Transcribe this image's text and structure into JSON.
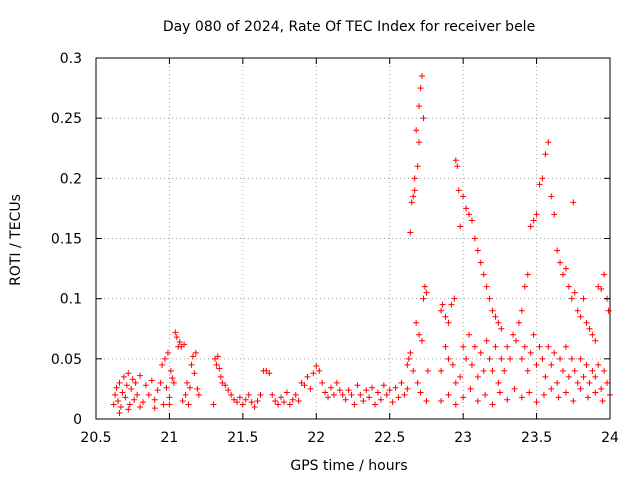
{
  "chart_data": {
    "type": "scatter",
    "title": "Day 080 of 2024, Rate Of TEC Index for receiver bele",
    "xlabel": "GPS time / hours",
    "ylabel": "ROTI / TECUs",
    "xlim": [
      20.5,
      24
    ],
    "ylim": [
      0,
      0.3
    ],
    "x_ticks": [
      20.5,
      21,
      21.5,
      22,
      22.5,
      23,
      23.5,
      24
    ],
    "x_tick_labels": [
      "20.5",
      "21",
      "21.5",
      "22",
      "22.5",
      "23",
      "23.5",
      "24"
    ],
    "y_ticks": [
      0,
      0.05,
      0.1,
      0.15,
      0.2,
      0.25,
      0.3
    ],
    "y_tick_labels": [
      "0",
      "0.05",
      "0.1",
      "0.15",
      "0.2",
      "0.25",
      "0.3"
    ],
    "grid": true,
    "marker": "+",
    "series_color": "#ff0000",
    "series": [
      {
        "name": "ROTI",
        "points": [
          [
            20.62,
            0.012
          ],
          [
            20.63,
            0.02
          ],
          [
            20.64,
            0.026
          ],
          [
            20.65,
            0.015
          ],
          [
            20.66,
            0.03
          ],
          [
            20.67,
            0.01
          ],
          [
            20.68,
            0.022
          ],
          [
            20.69,
            0.035
          ],
          [
            20.7,
            0.018
          ],
          [
            20.71,
            0.028
          ],
          [
            20.72,
            0.038
          ],
          [
            20.73,
            0.012
          ],
          [
            20.74,
            0.025
          ],
          [
            20.75,
            0.033
          ],
          [
            20.76,
            0.016
          ],
          [
            20.77,
            0.03
          ],
          [
            20.78,
            0.02
          ],
          [
            20.8,
            0.036
          ],
          [
            20.82,
            0.014
          ],
          [
            20.84,
            0.028
          ],
          [
            20.86,
            0.02
          ],
          [
            20.88,
            0.032
          ],
          [
            20.9,
            0.016
          ],
          [
            20.92,
            0.024
          ],
          [
            20.94,
            0.03
          ],
          [
            20.96,
            0.012
          ],
          [
            20.98,
            0.026
          ],
          [
            21.0,
            0.018
          ],
          [
            21.02,
            0.034
          ],
          [
            21.04,
            0.072
          ],
          [
            21.05,
            0.068
          ],
          [
            21.06,
            0.06
          ],
          [
            21.07,
            0.064
          ],
          [
            21.08,
            0.06
          ],
          [
            21.1,
            0.062
          ],
          [
            21.12,
            0.03
          ],
          [
            21.14,
            0.026
          ],
          [
            21.16,
            0.052
          ],
          [
            21.18,
            0.055
          ],
          [
            21.2,
            0.02
          ],
          [
            20.95,
            0.045
          ],
          [
            20.97,
            0.05
          ],
          [
            20.99,
            0.055
          ],
          [
            21.01,
            0.04
          ],
          [
            21.03,
            0.03
          ],
          [
            21.09,
            0.015
          ],
          [
            21.11,
            0.02
          ],
          [
            21.13,
            0.012
          ],
          [
            21.15,
            0.045
          ],
          [
            21.17,
            0.038
          ],
          [
            21.19,
            0.025
          ],
          [
            20.66,
            0.005
          ],
          [
            20.72,
            0.008
          ],
          [
            20.8,
            0.01
          ],
          [
            20.9,
            0.009
          ],
          [
            21.0,
            0.012
          ],
          [
            21.3,
            0.012
          ],
          [
            21.31,
            0.05
          ],
          [
            21.32,
            0.045
          ],
          [
            21.33,
            0.052
          ],
          [
            21.34,
            0.042
          ],
          [
            21.35,
            0.035
          ],
          [
            21.36,
            0.03
          ],
          [
            21.38,
            0.028
          ],
          [
            21.4,
            0.024
          ],
          [
            21.42,
            0.02
          ],
          [
            21.44,
            0.016
          ],
          [
            21.46,
            0.014
          ],
          [
            21.48,
            0.018
          ],
          [
            21.5,
            0.012
          ],
          [
            21.52,
            0.016
          ],
          [
            21.54,
            0.02
          ],
          [
            21.56,
            0.014
          ],
          [
            21.58,
            0.01
          ],
          [
            21.6,
            0.015
          ],
          [
            21.62,
            0.02
          ],
          [
            21.64,
            0.04
          ],
          [
            21.66,
            0.04
          ],
          [
            21.68,
            0.038
          ],
          [
            21.7,
            0.02
          ],
          [
            21.72,
            0.015
          ],
          [
            21.74,
            0.012
          ],
          [
            21.76,
            0.018
          ],
          [
            21.78,
            0.014
          ],
          [
            21.8,
            0.022
          ],
          [
            21.82,
            0.012
          ],
          [
            21.84,
            0.016
          ],
          [
            21.86,
            0.02
          ],
          [
            21.88,
            0.015
          ],
          [
            21.9,
            0.03
          ],
          [
            21.92,
            0.028
          ],
          [
            21.94,
            0.035
          ],
          [
            21.96,
            0.025
          ],
          [
            21.98,
            0.038
          ],
          [
            22.0,
            0.044
          ],
          [
            22.02,
            0.04
          ],
          [
            22.04,
            0.03
          ],
          [
            22.06,
            0.022
          ],
          [
            22.08,
            0.018
          ],
          [
            22.1,
            0.026
          ],
          [
            22.12,
            0.02
          ],
          [
            22.14,
            0.03
          ],
          [
            22.16,
            0.024
          ],
          [
            22.18,
            0.02
          ],
          [
            22.2,
            0.016
          ],
          [
            22.22,
            0.024
          ],
          [
            22.24,
            0.02
          ],
          [
            22.26,
            0.012
          ],
          [
            22.28,
            0.028
          ],
          [
            22.3,
            0.02
          ],
          [
            22.32,
            0.015
          ],
          [
            22.34,
            0.024
          ],
          [
            22.36,
            0.018
          ],
          [
            22.38,
            0.026
          ],
          [
            22.4,
            0.012
          ],
          [
            22.42,
            0.022
          ],
          [
            22.44,
            0.016
          ],
          [
            22.46,
            0.028
          ],
          [
            22.48,
            0.02
          ],
          [
            22.5,
            0.024
          ],
          [
            22.52,
            0.014
          ],
          [
            22.54,
            0.026
          ],
          [
            22.56,
            0.018
          ],
          [
            22.58,
            0.03
          ],
          [
            22.6,
            0.02
          ],
          [
            22.62,
            0.045
          ],
          [
            22.63,
            0.05
          ],
          [
            22.64,
            0.055
          ],
          [
            22.65,
            0.18
          ],
          [
            22.66,
            0.185
          ],
          [
            22.67,
            0.19
          ],
          [
            22.68,
            0.24
          ],
          [
            22.69,
            0.21
          ],
          [
            22.7,
            0.26
          ],
          [
            22.71,
            0.275
          ],
          [
            22.72,
            0.285
          ],
          [
            22.73,
            0.25
          ],
          [
            22.74,
            0.11
          ],
          [
            22.75,
            0.105
          ],
          [
            22.76,
            0.04
          ],
          [
            22.64,
            0.155
          ],
          [
            22.67,
            0.2
          ],
          [
            22.7,
            0.23
          ],
          [
            22.73,
            0.1
          ],
          [
            22.68,
            0.08
          ],
          [
            22.7,
            0.07
          ],
          [
            22.72,
            0.065
          ],
          [
            22.66,
            0.04
          ],
          [
            22.62,
            0.025
          ],
          [
            22.69,
            0.03
          ],
          [
            22.71,
            0.022
          ],
          [
            22.75,
            0.015
          ],
          [
            22.85,
            0.09
          ],
          [
            22.86,
            0.095
          ],
          [
            22.88,
            0.085
          ],
          [
            22.9,
            0.08
          ],
          [
            22.92,
            0.095
          ],
          [
            22.94,
            0.1
          ],
          [
            22.95,
            0.215
          ],
          [
            22.96,
            0.21
          ],
          [
            22.97,
            0.19
          ],
          [
            22.98,
            0.16
          ],
          [
            23.0,
            0.185
          ],
          [
            23.02,
            0.175
          ],
          [
            23.04,
            0.17
          ],
          [
            23.06,
            0.165
          ],
          [
            23.08,
            0.15
          ],
          [
            23.1,
            0.14
          ],
          [
            23.12,
            0.13
          ],
          [
            23.14,
            0.12
          ],
          [
            23.16,
            0.11
          ],
          [
            23.18,
            0.1
          ],
          [
            23.2,
            0.09
          ],
          [
            23.22,
            0.085
          ],
          [
            23.24,
            0.08
          ],
          [
            23.26,
            0.075
          ],
          [
            22.85,
            0.04
          ],
          [
            22.88,
            0.06
          ],
          [
            22.9,
            0.05
          ],
          [
            22.93,
            0.045
          ],
          [
            22.95,
            0.03
          ],
          [
            22.98,
            0.035
          ],
          [
            23.0,
            0.06
          ],
          [
            23.02,
            0.05
          ],
          [
            23.04,
            0.07
          ],
          [
            23.06,
            0.045
          ],
          [
            23.08,
            0.06
          ],
          [
            23.1,
            0.035
          ],
          [
            23.12,
            0.055
          ],
          [
            23.14,
            0.04
          ],
          [
            23.16,
            0.065
          ],
          [
            23.18,
            0.05
          ],
          [
            23.2,
            0.04
          ],
          [
            23.22,
            0.06
          ],
          [
            23.24,
            0.03
          ],
          [
            23.26,
            0.05
          ],
          [
            23.28,
            0.04
          ],
          [
            23.3,
            0.06
          ],
          [
            23.32,
            0.05
          ],
          [
            23.34,
            0.07
          ],
          [
            23.36,
            0.065
          ],
          [
            23.38,
            0.08
          ],
          [
            23.4,
            0.09
          ],
          [
            23.42,
            0.11
          ],
          [
            23.44,
            0.12
          ],
          [
            23.46,
            0.16
          ],
          [
            23.48,
            0.165
          ],
          [
            23.5,
            0.17
          ],
          [
            23.52,
            0.195
          ],
          [
            23.54,
            0.2
          ],
          [
            23.56,
            0.22
          ],
          [
            23.58,
            0.23
          ],
          [
            23.6,
            0.185
          ],
          [
            23.62,
            0.17
          ],
          [
            23.64,
            0.14
          ],
          [
            23.66,
            0.13
          ],
          [
            23.68,
            0.12
          ],
          [
            23.7,
            0.125
          ],
          [
            23.72,
            0.11
          ],
          [
            23.74,
            0.1
          ],
          [
            23.76,
            0.105
          ],
          [
            23.78,
            0.09
          ],
          [
            23.8,
            0.085
          ],
          [
            23.82,
            0.1
          ],
          [
            23.84,
            0.08
          ],
          [
            23.86,
            0.075
          ],
          [
            23.88,
            0.07
          ],
          [
            23.9,
            0.065
          ],
          [
            23.92,
            0.11
          ],
          [
            23.94,
            0.108
          ],
          [
            23.96,
            0.12
          ],
          [
            23.98,
            0.1
          ],
          [
            23.4,
            0.05
          ],
          [
            23.42,
            0.06
          ],
          [
            23.44,
            0.04
          ],
          [
            23.46,
            0.055
          ],
          [
            23.48,
            0.07
          ],
          [
            23.5,
            0.045
          ],
          [
            23.52,
            0.06
          ],
          [
            23.54,
            0.05
          ],
          [
            23.56,
            0.035
          ],
          [
            23.58,
            0.06
          ],
          [
            23.6,
            0.045
          ],
          [
            23.62,
            0.055
          ],
          [
            23.64,
            0.03
          ],
          [
            23.66,
            0.05
          ],
          [
            23.68,
            0.04
          ],
          [
            23.7,
            0.06
          ],
          [
            23.72,
            0.035
          ],
          [
            23.74,
            0.05
          ],
          [
            23.76,
            0.04
          ],
          [
            23.78,
            0.03
          ],
          [
            23.8,
            0.05
          ],
          [
            23.82,
            0.035
          ],
          [
            23.84,
            0.045
          ],
          [
            23.86,
            0.03
          ],
          [
            23.88,
            0.04
          ],
          [
            23.9,
            0.035
          ],
          [
            23.92,
            0.045
          ],
          [
            23.94,
            0.025
          ],
          [
            23.96,
            0.04
          ],
          [
            23.98,
            0.03
          ],
          [
            23.99,
            0.09
          ],
          [
            23.75,
            0.18
          ],
          [
            22.85,
            0.015
          ],
          [
            22.9,
            0.02
          ],
          [
            22.95,
            0.012
          ],
          [
            23.0,
            0.018
          ],
          [
            23.05,
            0.025
          ],
          [
            23.1,
            0.015
          ],
          [
            23.15,
            0.02
          ],
          [
            23.2,
            0.012
          ],
          [
            23.25,
            0.022
          ],
          [
            23.3,
            0.016
          ],
          [
            23.35,
            0.025
          ],
          [
            23.4,
            0.018
          ],
          [
            23.45,
            0.022
          ],
          [
            23.5,
            0.014
          ],
          [
            23.55,
            0.02
          ],
          [
            23.6,
            0.025
          ],
          [
            23.65,
            0.018
          ],
          [
            23.7,
            0.022
          ],
          [
            23.75,
            0.015
          ],
          [
            23.8,
            0.025
          ],
          [
            23.85,
            0.018
          ],
          [
            23.9,
            0.022
          ],
          [
            23.95,
            0.015
          ],
          [
            24.0,
            0.02
          ]
        ]
      }
    ]
  }
}
